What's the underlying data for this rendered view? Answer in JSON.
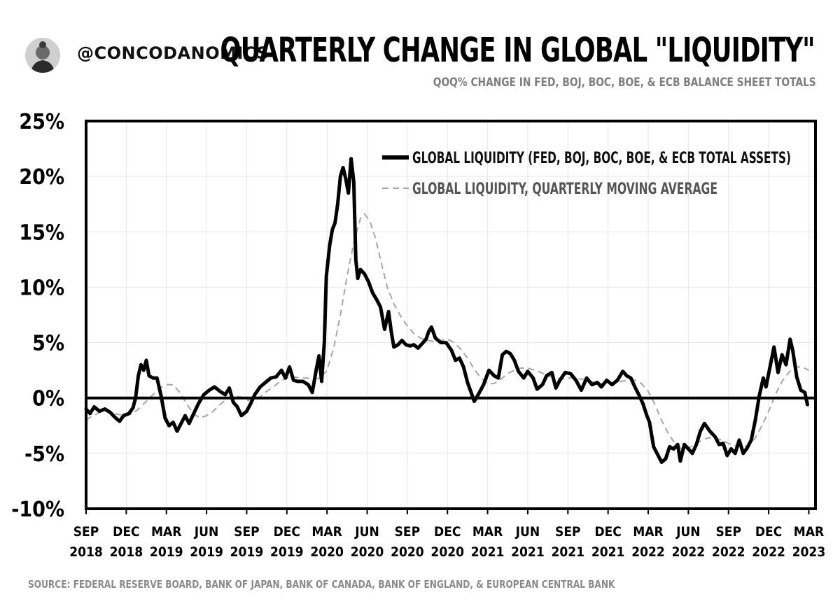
{
  "header": {
    "handle": "@CONCODANOMICS",
    "title": "QUARTERLY CHANGE IN GLOBAL \"LIQUIDITY\"",
    "subtitle": "QOQ% CHANGE IN FED, BOJ, BOC, BOE, & ECB BALANCE SHEET TOTALS"
  },
  "footer": {
    "source": "SOURCE: FEDERAL RESERVE BOARD, BANK OF JAPAN, BANK OF CANADA, BANK OF ENGLAND, & EUROPEAN CENTRAL BANK"
  },
  "colors": {
    "main_line": "#000000",
    "ma_line": "#a6a6a6",
    "grid": "#e6e6e6",
    "muted_text": "#7f7f7f"
  },
  "chart_data": {
    "type": "line",
    "title": "QUARTERLY CHANGE IN GLOBAL \"LIQUIDITY\"",
    "xlabel": "",
    "ylabel": "",
    "ylim": [
      -10,
      25
    ],
    "xlim": [
      0,
      54.5
    ],
    "grid": true,
    "legend_position": "top-right",
    "y_ticks": [
      -10,
      -5,
      0,
      5,
      10,
      15,
      20,
      25
    ],
    "y_tick_labels": [
      "-10%",
      "-5%",
      "0%",
      "5%",
      "10%",
      "15%",
      "20%",
      "25%"
    ],
    "x_ticks": [
      0,
      3,
      6,
      9,
      12,
      15,
      18,
      21,
      24,
      27,
      30,
      33,
      36,
      39,
      42,
      45,
      48,
      51,
      54
    ],
    "x_tick_labels": [
      [
        "SEP",
        "2018"
      ],
      [
        "DEC",
        "2018"
      ],
      [
        "MAR",
        "2019"
      ],
      [
        "JUN",
        "2019"
      ],
      [
        "SEP",
        "2019"
      ],
      [
        "DEC",
        "2019"
      ],
      [
        "MAR",
        "2020"
      ],
      [
        "JUN",
        "2020"
      ],
      [
        "SEP",
        "2020"
      ],
      [
        "DEC",
        "2020"
      ],
      [
        "MAR",
        "2021"
      ],
      [
        "JUN",
        "2021"
      ],
      [
        "SEP",
        "2021"
      ],
      [
        "DEC",
        "2021"
      ],
      [
        "MAR",
        "2022"
      ],
      [
        "JUN",
        "2022"
      ],
      [
        "SEP",
        "2022"
      ],
      [
        "DEC",
        "2022"
      ],
      [
        "MAR",
        "2023"
      ]
    ],
    "x_unit": "months since Sep 2018",
    "series": [
      {
        "name": "GLOBAL LIQUIDITY (FED, BOJ, BOC, BOE, & ECB TOTAL ASSETS)",
        "style": "solid",
        "points": [
          [
            0,
            -1.0
          ],
          [
            0.3,
            -1.4
          ],
          [
            0.6,
            -0.8
          ],
          [
            1.0,
            -1.2
          ],
          [
            1.4,
            -1.0
          ],
          [
            1.8,
            -1.3
          ],
          [
            2.2,
            -1.8
          ],
          [
            2.5,
            -2.1
          ],
          [
            2.8,
            -1.6
          ],
          [
            3.2,
            -1.4
          ],
          [
            3.5,
            -0.9
          ],
          [
            3.7,
            0.0
          ],
          [
            3.9,
            2.0
          ],
          [
            4.1,
            3.0
          ],
          [
            4.3,
            2.5
          ],
          [
            4.5,
            3.4
          ],
          [
            4.7,
            2.0
          ],
          [
            5.0,
            1.8
          ],
          [
            5.3,
            1.8
          ],
          [
            5.6,
            0.2
          ],
          [
            5.9,
            -1.8
          ],
          [
            6.2,
            -2.5
          ],
          [
            6.5,
            -2.2
          ],
          [
            6.8,
            -3.0
          ],
          [
            7.1,
            -2.3
          ],
          [
            7.4,
            -1.6
          ],
          [
            7.7,
            -2.3
          ],
          [
            8.0,
            -1.5
          ],
          [
            8.4,
            -0.5
          ],
          [
            8.8,
            0.3
          ],
          [
            9.2,
            0.7
          ],
          [
            9.6,
            1.0
          ],
          [
            10.0,
            0.6
          ],
          [
            10.4,
            0.3
          ],
          [
            10.7,
            0.9
          ],
          [
            11.0,
            -0.4
          ],
          [
            11.3,
            -0.8
          ],
          [
            11.6,
            -1.6
          ],
          [
            12.0,
            -1.2
          ],
          [
            12.3,
            -0.5
          ],
          [
            12.6,
            0.3
          ],
          [
            13.0,
            1.0
          ],
          [
            13.4,
            1.4
          ],
          [
            13.8,
            1.8
          ],
          [
            14.2,
            1.9
          ],
          [
            14.6,
            2.5
          ],
          [
            14.9,
            1.8
          ],
          [
            15.2,
            2.8
          ],
          [
            15.5,
            1.6
          ],
          [
            15.8,
            1.5
          ],
          [
            16.2,
            1.5
          ],
          [
            16.6,
            1.2
          ],
          [
            16.9,
            0.5
          ],
          [
            17.2,
            2.6
          ],
          [
            17.4,
            3.8
          ],
          [
            17.6,
            1.5
          ],
          [
            17.8,
            5.0
          ],
          [
            17.95,
            11.0
          ],
          [
            18.2,
            13.8
          ],
          [
            18.4,
            15.2
          ],
          [
            18.6,
            15.8
          ],
          [
            18.8,
            17.5
          ],
          [
            19.0,
            20.0
          ],
          [
            19.2,
            20.8
          ],
          [
            19.4,
            19.8
          ],
          [
            19.6,
            18.5
          ],
          [
            19.8,
            21.6
          ],
          [
            20.0,
            19.5
          ],
          [
            20.15,
            12.5
          ],
          [
            20.3,
            10.8
          ],
          [
            20.5,
            11.6
          ],
          [
            20.8,
            11.2
          ],
          [
            21.1,
            10.5
          ],
          [
            21.4,
            9.5
          ],
          [
            21.7,
            8.9
          ],
          [
            22.0,
            8.2
          ],
          [
            22.3,
            6.2
          ],
          [
            22.6,
            7.8
          ],
          [
            22.8,
            6.0
          ],
          [
            23.0,
            4.6
          ],
          [
            23.3,
            4.8
          ],
          [
            23.6,
            5.2
          ],
          [
            23.9,
            4.8
          ],
          [
            24.2,
            4.7
          ],
          [
            24.5,
            4.8
          ],
          [
            24.8,
            4.5
          ],
          [
            25.1,
            4.9
          ],
          [
            25.4,
            5.3
          ],
          [
            25.6,
            6.0
          ],
          [
            25.8,
            6.4
          ],
          [
            26.1,
            5.4
          ],
          [
            26.5,
            5.0
          ],
          [
            26.9,
            5.0
          ],
          [
            27.3,
            4.3
          ],
          [
            27.6,
            3.4
          ],
          [
            27.9,
            3.6
          ],
          [
            28.2,
            2.8
          ],
          [
            28.5,
            1.4
          ],
          [
            28.8,
            0.4
          ],
          [
            29.0,
            -0.3
          ],
          [
            29.3,
            0.3
          ],
          [
            29.7,
            1.2
          ],
          [
            30.1,
            2.5
          ],
          [
            30.5,
            2.0
          ],
          [
            30.8,
            1.8
          ],
          [
            31.1,
            3.9
          ],
          [
            31.4,
            4.2
          ],
          [
            31.7,
            4.0
          ],
          [
            32.0,
            3.4
          ],
          [
            32.3,
            2.4
          ],
          [
            32.7,
            1.8
          ],
          [
            33.0,
            2.4
          ],
          [
            33.4,
            1.8
          ],
          [
            33.7,
            0.8
          ],
          [
            34.1,
            1.2
          ],
          [
            34.4,
            2.0
          ],
          [
            34.8,
            2.3
          ],
          [
            35.1,
            0.9
          ],
          [
            35.4,
            1.6
          ],
          [
            35.8,
            2.3
          ],
          [
            36.2,
            2.2
          ],
          [
            36.6,
            1.6
          ],
          [
            37.0,
            0.7
          ],
          [
            37.4,
            1.8
          ],
          [
            37.8,
            1.2
          ],
          [
            38.2,
            1.4
          ],
          [
            38.5,
            1.0
          ],
          [
            38.9,
            1.6
          ],
          [
            39.3,
            1.2
          ],
          [
            39.7,
            1.6
          ],
          [
            40.1,
            2.4
          ],
          [
            40.4,
            2.0
          ],
          [
            40.7,
            1.8
          ],
          [
            41.0,
            1.0
          ],
          [
            41.3,
            0.3
          ],
          [
            41.6,
            -0.5
          ],
          [
            41.9,
            -1.6
          ],
          [
            42.1,
            -2.2
          ],
          [
            42.4,
            -4.4
          ],
          [
            42.7,
            -5.1
          ],
          [
            43.0,
            -5.8
          ],
          [
            43.3,
            -5.5
          ],
          [
            43.6,
            -4.4
          ],
          [
            43.9,
            -4.6
          ],
          [
            44.2,
            -4.2
          ],
          [
            44.4,
            -5.7
          ],
          [
            44.7,
            -4.2
          ],
          [
            45.0,
            -4.6
          ],
          [
            45.3,
            -5.0
          ],
          [
            45.6,
            -4.2
          ],
          [
            45.9,
            -3.0
          ],
          [
            46.2,
            -2.3
          ],
          [
            46.6,
            -3.0
          ],
          [
            47.0,
            -3.5
          ],
          [
            47.3,
            -4.2
          ],
          [
            47.6,
            -4.1
          ],
          [
            47.9,
            -5.2
          ],
          [
            48.2,
            -4.6
          ],
          [
            48.5,
            -5.0
          ],
          [
            48.8,
            -3.8
          ],
          [
            49.1,
            -5.0
          ],
          [
            49.4,
            -4.5
          ],
          [
            49.7,
            -3.8
          ],
          [
            50.0,
            -2.0
          ],
          [
            50.3,
            0.2
          ],
          [
            50.6,
            1.8
          ],
          [
            50.8,
            1.0
          ],
          [
            51.1,
            2.8
          ],
          [
            51.4,
            4.6
          ],
          [
            51.7,
            2.3
          ],
          [
            52.0,
            3.9
          ],
          [
            52.3,
            3.0
          ],
          [
            52.6,
            5.3
          ],
          [
            52.8,
            4.3
          ],
          [
            53.1,
            1.9
          ],
          [
            53.4,
            0.7
          ],
          [
            53.7,
            0.5
          ],
          [
            53.9,
            -0.6
          ]
        ]
      },
      {
        "name": "GLOBAL LIQUIDITY, QUARTERLY MOVING AVERAGE",
        "style": "dashed",
        "points": [
          [
            0,
            -2.0
          ],
          [
            0.5,
            -1.6
          ],
          [
            1.0,
            -1.3
          ],
          [
            1.5,
            -1.2
          ],
          [
            2.0,
            -1.4
          ],
          [
            2.5,
            -1.5
          ],
          [
            3.0,
            -1.6
          ],
          [
            3.5,
            -1.4
          ],
          [
            4.0,
            -0.9
          ],
          [
            4.5,
            -0.3
          ],
          [
            5.0,
            0.3
          ],
          [
            5.5,
            0.9
          ],
          [
            6.0,
            1.2
          ],
          [
            6.5,
            1.2
          ],
          [
            7.0,
            0.5
          ],
          [
            7.5,
            -0.5
          ],
          [
            8.0,
            -1.4
          ],
          [
            8.5,
            -1.8
          ],
          [
            9.0,
            -1.6
          ],
          [
            9.5,
            -1.2
          ],
          [
            10.0,
            -0.6
          ],
          [
            10.5,
            -0.1
          ],
          [
            11.0,
            0.2
          ],
          [
            11.5,
            0.1
          ],
          [
            12.0,
            -0.2
          ],
          [
            12.5,
            -0.2
          ],
          [
            13.0,
            0.1
          ],
          [
            13.5,
            0.6
          ],
          [
            14.0,
            1.0
          ],
          [
            14.5,
            1.5
          ],
          [
            15.0,
            1.8
          ],
          [
            15.5,
            1.9
          ],
          [
            16.0,
            1.8
          ],
          [
            16.5,
            1.8
          ],
          [
            17.0,
            1.7
          ],
          [
            17.5,
            1.8
          ],
          [
            18.0,
            2.5
          ],
          [
            18.5,
            4.5
          ],
          [
            19.0,
            7.5
          ],
          [
            19.5,
            11.0
          ],
          [
            20.0,
            14.0
          ],
          [
            20.5,
            16.2
          ],
          [
            20.8,
            16.6
          ],
          [
            21.2,
            16.0
          ],
          [
            21.6,
            14.5
          ],
          [
            22.0,
            12.5
          ],
          [
            22.5,
            10.0
          ],
          [
            23.0,
            8.5
          ],
          [
            23.5,
            7.4
          ],
          [
            24.0,
            6.5
          ],
          [
            24.5,
            5.8
          ],
          [
            25.0,
            5.4
          ],
          [
            25.5,
            5.2
          ],
          [
            26.0,
            5.1
          ],
          [
            26.5,
            5.2
          ],
          [
            27.0,
            5.3
          ],
          [
            27.5,
            5.0
          ],
          [
            28.0,
            4.4
          ],
          [
            28.5,
            3.6
          ],
          [
            29.0,
            2.6
          ],
          [
            29.5,
            1.8
          ],
          [
            30.0,
            1.3
          ],
          [
            30.5,
            1.3
          ],
          [
            31.0,
            1.7
          ],
          [
            31.5,
            2.2
          ],
          [
            32.0,
            2.5
          ],
          [
            32.5,
            2.7
          ],
          [
            33.0,
            2.7
          ],
          [
            33.5,
            2.5
          ],
          [
            34.0,
            2.3
          ],
          [
            34.5,
            2.0
          ],
          [
            35.0,
            1.8
          ],
          [
            35.5,
            1.7
          ],
          [
            36.0,
            1.8
          ],
          [
            36.5,
            1.8
          ],
          [
            37.0,
            1.7
          ],
          [
            37.5,
            1.6
          ],
          [
            38.0,
            1.4
          ],
          [
            38.5,
            1.3
          ],
          [
            39.0,
            1.2
          ],
          [
            39.5,
            1.3
          ],
          [
            40.0,
            1.5
          ],
          [
            40.5,
            1.6
          ],
          [
            41.0,
            1.6
          ],
          [
            41.5,
            1.3
          ],
          [
            42.0,
            0.6
          ],
          [
            42.5,
            -0.6
          ],
          [
            43.0,
            -2.0
          ],
          [
            43.5,
            -3.2
          ],
          [
            44.0,
            -4.1
          ],
          [
            44.5,
            -4.6
          ],
          [
            45.0,
            -4.5
          ],
          [
            45.5,
            -4.2
          ],
          [
            46.0,
            -3.8
          ],
          [
            46.5,
            -3.6
          ],
          [
            47.0,
            -3.6
          ],
          [
            47.5,
            -3.8
          ],
          [
            48.0,
            -4.1
          ],
          [
            48.5,
            -4.3
          ],
          [
            49.0,
            -4.4
          ],
          [
            49.5,
            -4.3
          ],
          [
            50.0,
            -3.6
          ],
          [
            50.5,
            -2.5
          ],
          [
            51.0,
            -1.2
          ],
          [
            51.5,
            0.3
          ],
          [
            52.0,
            1.5
          ],
          [
            52.5,
            2.3
          ],
          [
            53.0,
            2.8
          ],
          [
            53.5,
            2.8
          ],
          [
            54.0,
            2.5
          ]
        ]
      }
    ]
  }
}
